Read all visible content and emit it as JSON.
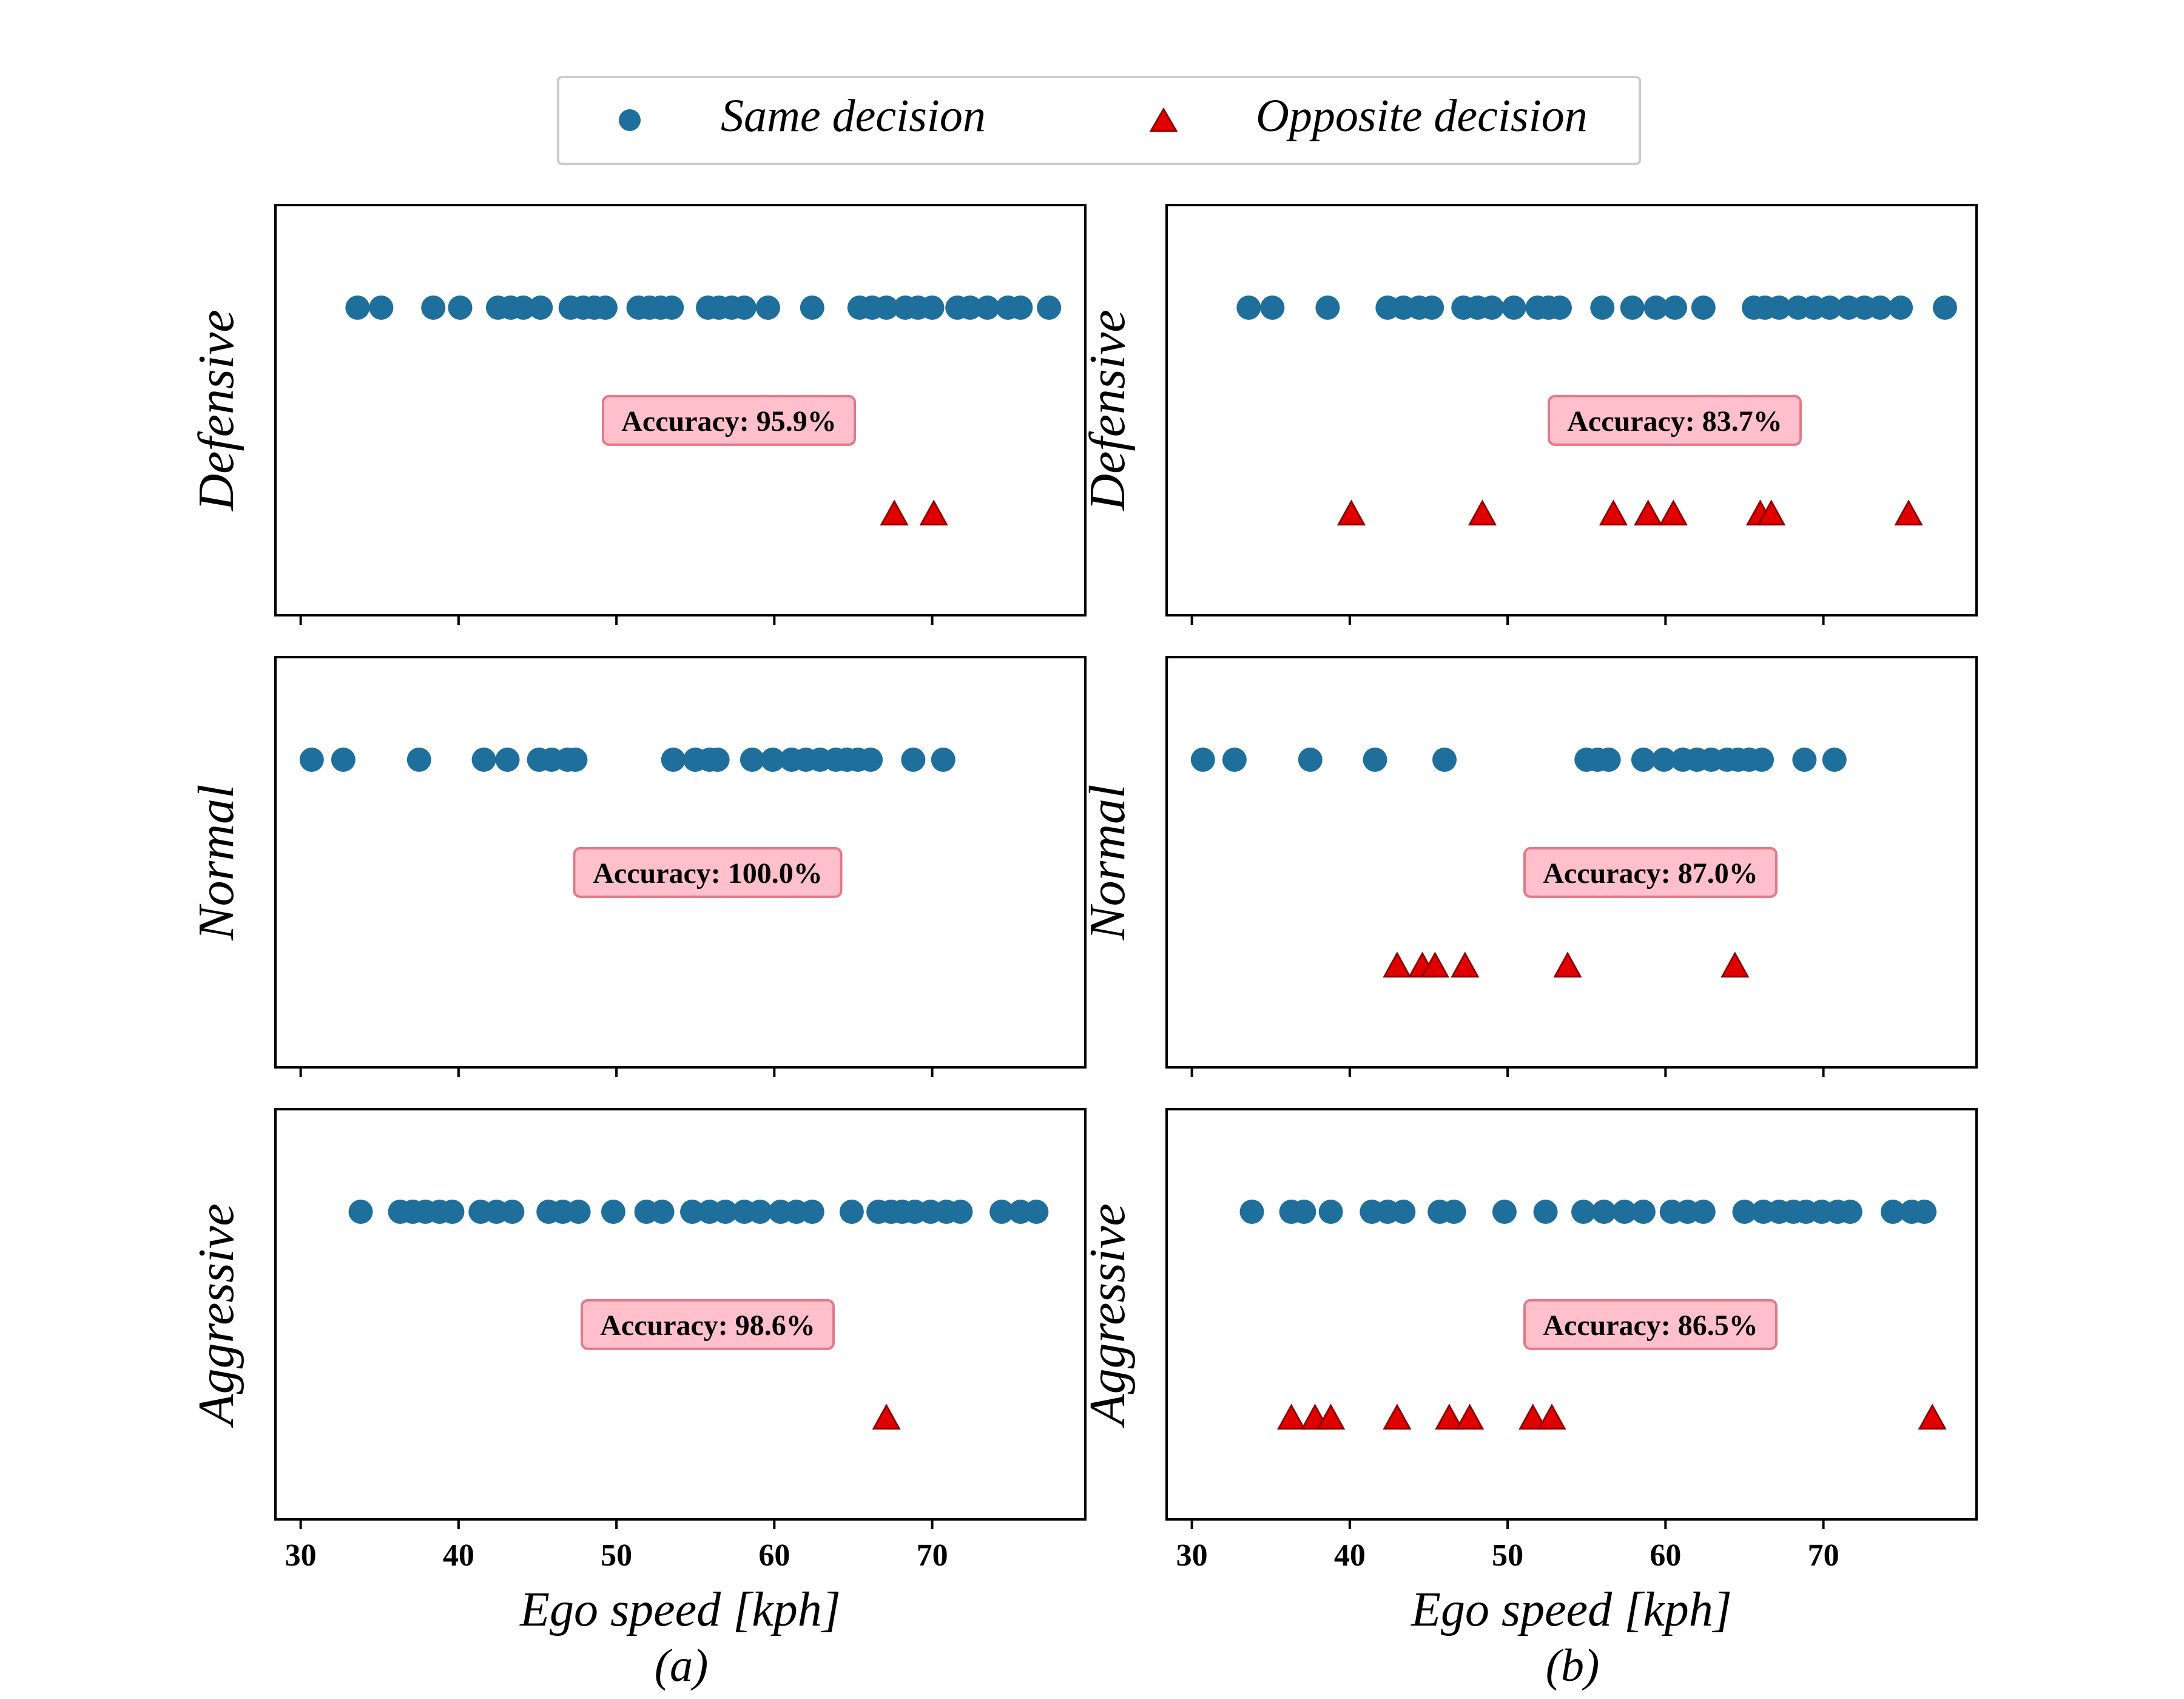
{
  "legend": {
    "same_label": "Same decision",
    "opposite_label": "Opposite decision"
  },
  "colors": {
    "same": "#1f6f9c",
    "opposite": "#e00000",
    "acc_box_fill": "#ffc0cb",
    "acc_box_stroke": "#e07a8a"
  },
  "chart_data": [
    {
      "type": "scatter",
      "column_label": "(a)",
      "row": "Defensive",
      "ylabel": "Defensive",
      "xlabel": "Ego speed [kph]",
      "xlim": [
        28.4,
        79.7
      ],
      "xticks": [
        30,
        40,
        50,
        60,
        70
      ],
      "grid": false,
      "accuracy_label": "Accuracy: 95.9%",
      "same_decision": [
        33.6,
        35.1,
        38.4,
        40.1,
        42.5,
        43.3,
        44.1,
        45.2,
        47.1,
        47.9,
        48.6,
        49.3,
        51.4,
        52.1,
        52.8,
        53.5,
        55.8,
        56.5,
        57.3,
        58.1,
        59.6,
        62.4,
        65.4,
        66.2,
        67.1,
        68.3,
        69.1,
        70.0,
        71.6,
        72.4,
        73.5,
        74.8,
        75.6,
        77.4
      ],
      "opposite_decision": [
        67.6,
        70.1
      ]
    },
    {
      "type": "scatter",
      "column_label": "(b)",
      "row": "Defensive",
      "ylabel": "Defensive",
      "xlabel": "Ego speed [kph]",
      "xlim": [
        28.4,
        79.7
      ],
      "xticks": [
        30,
        40,
        50,
        60,
        70
      ],
      "grid": false,
      "accuracy_label": "Accuracy: 83.7%",
      "same_decision": [
        33.6,
        35.1,
        38.6,
        42.4,
        43.4,
        44.4,
        45.2,
        47.2,
        48.1,
        49.0,
        50.4,
        51.9,
        52.6,
        53.3,
        56.0,
        57.9,
        59.4,
        60.6,
        62.4,
        65.6,
        66.3,
        67.2,
        68.4,
        69.4,
        70.4,
        71.6,
        72.6,
        73.6,
        74.9,
        77.7
      ],
      "opposite_decision": [
        40.1,
        48.4,
        56.7,
        58.9,
        60.5,
        66.0,
        66.7,
        75.4
      ]
    },
    {
      "type": "scatter",
      "column_label": "(a)",
      "row": "Normal",
      "ylabel": "Normal",
      "xlabel": "Ego speed [kph]",
      "xlim": [
        28.4,
        79.7
      ],
      "xticks": [
        30,
        40,
        50,
        60,
        70
      ],
      "grid": false,
      "accuracy_label": "Accuracy: 100.0%",
      "same_decision": [
        30.7,
        32.7,
        37.5,
        41.6,
        43.1,
        45.1,
        45.9,
        46.9,
        47.4,
        53.6,
        55.0,
        55.9,
        56.4,
        58.6,
        59.9,
        61.1,
        62.0,
        62.9,
        63.9,
        64.6,
        65.3,
        66.1,
        68.8,
        70.7
      ],
      "opposite_decision": []
    },
    {
      "type": "scatter",
      "column_label": "(b)",
      "row": "Normal",
      "ylabel": "Normal",
      "xlabel": "Ego speed [kph]",
      "xlim": [
        28.4,
        79.7
      ],
      "xticks": [
        30,
        40,
        50,
        60,
        70
      ],
      "grid": false,
      "accuracy_label": "Accuracy: 87.0%",
      "same_decision": [
        30.7,
        32.7,
        37.5,
        41.6,
        46.0,
        55.0,
        55.7,
        56.4,
        58.6,
        59.9,
        61.1,
        62.0,
        62.9,
        63.9,
        64.6,
        65.3,
        66.1,
        68.8,
        70.7
      ],
      "opposite_decision": [
        43.0,
        44.6,
        45.4,
        47.3,
        53.8,
        64.4
      ]
    },
    {
      "type": "scatter",
      "column_label": "(a)",
      "row": "Aggressive",
      "ylabel": "Aggressive",
      "xlabel": "Ego speed [kph]",
      "xlim": [
        28.4,
        79.7
      ],
      "xticks": [
        30,
        40,
        50,
        60,
        70
      ],
      "grid": false,
      "accuracy_label": "Accuracy: 98.6%",
      "same_decision": [
        33.8,
        36.3,
        37.1,
        37.9,
        38.8,
        39.6,
        41.4,
        42.4,
        43.4,
        45.7,
        46.6,
        47.6,
        49.8,
        51.9,
        52.9,
        54.8,
        55.9,
        56.9,
        58.1,
        59.1,
        60.4,
        61.4,
        62.4,
        64.9,
        66.6,
        67.4,
        68.1,
        68.9,
        69.9,
        70.9,
        71.8,
        74.4,
        75.6,
        76.6
      ],
      "opposite_decision": [
        67.1
      ]
    },
    {
      "type": "scatter",
      "column_label": "(b)",
      "row": "Aggressive",
      "ylabel": "Aggressive",
      "xlabel": "Ego speed [kph]",
      "xlim": [
        28.4,
        79.7
      ],
      "xticks": [
        30,
        40,
        50,
        60,
        70
      ],
      "grid": false,
      "accuracy_label": "Accuracy: 86.5%",
      "same_decision": [
        33.8,
        36.3,
        37.1,
        38.8,
        41.4,
        42.4,
        43.4,
        45.7,
        46.6,
        49.8,
        52.4,
        54.8,
        56.1,
        57.4,
        58.6,
        60.4,
        61.4,
        62.4,
        65.0,
        66.2,
        67.2,
        68.1,
        68.9,
        69.9,
        70.9,
        71.7,
        74.4,
        75.6,
        76.4
      ],
      "opposite_decision": [
        36.3,
        37.8,
        38.8,
        43.0,
        46.3,
        47.6,
        51.6,
        52.8,
        76.9
      ]
    }
  ]
}
